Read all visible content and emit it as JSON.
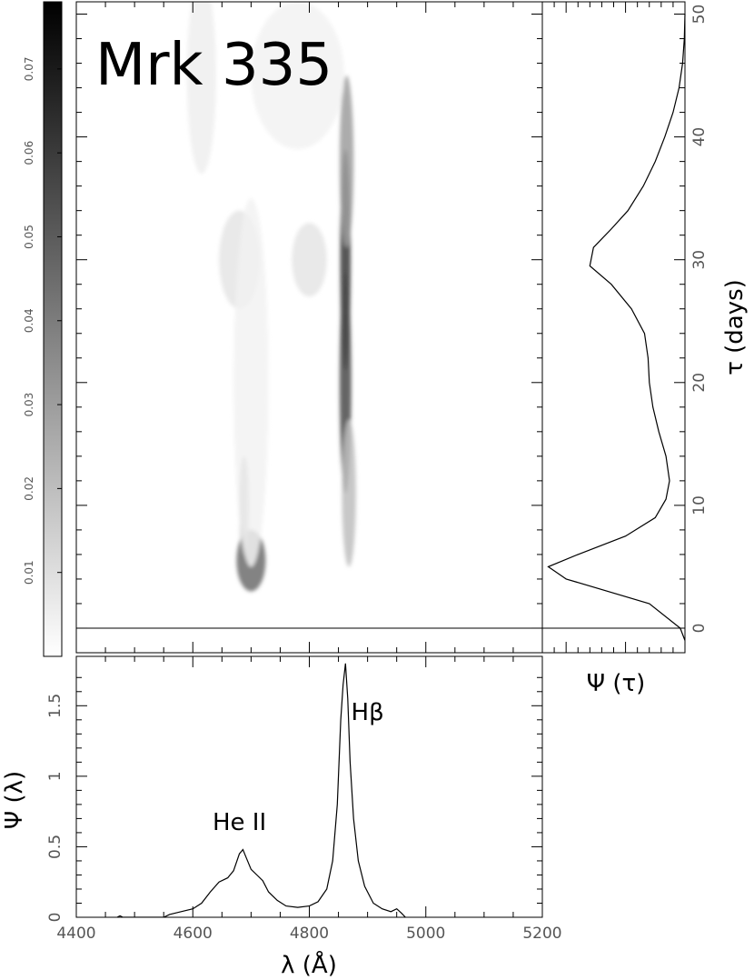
{
  "title": "Mrk 335",
  "chart_data": [
    {
      "type": "heatmap",
      "name": "velocity-delay map",
      "x_range": [
        4400,
        5200
      ],
      "y_range": [
        -2,
        51
      ],
      "colorbar": {
        "range": [
          0,
          0.078
        ],
        "ticks": [
          "0.01",
          "0.02",
          "0.03",
          "0.04",
          "0.05",
          "0.06",
          "0.07"
        ],
        "tick_values": [
          0.01,
          0.02,
          0.03,
          0.04,
          0.05,
          0.06,
          0.07
        ],
        "colors": [
          "#ffffff",
          "#000000"
        ]
      },
      "blobs": [
        {
          "x": 4862,
          "y": 30,
          "sx": 9,
          "sy": 9,
          "v": 0.06
        },
        {
          "x": 4862,
          "y": 20,
          "sx": 10,
          "sy": 9,
          "v": 0.055
        },
        {
          "x": 4864,
          "y": 38,
          "sx": 12,
          "sy": 7,
          "v": 0.03
        },
        {
          "x": 4868,
          "y": 11,
          "sx": 12,
          "sy": 6,
          "v": 0.02
        },
        {
          "x": 4700,
          "y": 5.5,
          "sx": 25,
          "sy": 2.5,
          "v": 0.045
        },
        {
          "x": 4688,
          "y": 10,
          "sx": 8,
          "sy": 4,
          "v": 0.03
        },
        {
          "x": 4680,
          "y": 30,
          "sx": 35,
          "sy": 4,
          "v": 0.008
        },
        {
          "x": 4800,
          "y": 30,
          "sx": 30,
          "sy": 3,
          "v": 0.008
        },
        {
          "x": 4780,
          "y": 45,
          "sx": 80,
          "sy": 6,
          "v": 0.004
        },
        {
          "x": 4700,
          "y": 20,
          "sx": 30,
          "sy": 15,
          "v": 0.004
        },
        {
          "x": 4615,
          "y": 45,
          "sx": 25,
          "sy": 8,
          "v": 0.005
        }
      ]
    },
    {
      "type": "line",
      "name": "delay-integrated response",
      "xlabel": "Ψ (τ)",
      "ylabel": "τ (days)",
      "y_ticks": [
        0,
        10,
        20,
        30,
        40,
        50
      ],
      "ylim": [
        -2,
        51
      ],
      "xlim": [
        0,
        0.12
      ],
      "points": [
        [
          0.0,
          -1
        ],
        [
          0.004,
          0
        ],
        [
          0.03,
          2
        ],
        [
          0.1,
          4
        ],
        [
          0.115,
          5
        ],
        [
          0.09,
          6
        ],
        [
          0.05,
          7.5
        ],
        [
          0.025,
          9
        ],
        [
          0.016,
          10.5
        ],
        [
          0.013,
          12
        ],
        [
          0.016,
          14
        ],
        [
          0.022,
          16
        ],
        [
          0.027,
          18
        ],
        [
          0.03,
          20
        ],
        [
          0.031,
          22
        ],
        [
          0.034,
          24
        ],
        [
          0.045,
          26
        ],
        [
          0.062,
          28
        ],
        [
          0.08,
          29.5
        ],
        [
          0.077,
          31
        ],
        [
          0.062,
          32.5
        ],
        [
          0.048,
          34
        ],
        [
          0.035,
          36
        ],
        [
          0.025,
          38
        ],
        [
          0.017,
          40
        ],
        [
          0.01,
          42
        ],
        [
          0.005,
          44
        ],
        [
          0.002,
          46
        ],
        [
          0.0005,
          48
        ],
        [
          0.0,
          50
        ]
      ]
    },
    {
      "type": "line",
      "name": "mean spectrum",
      "xlabel": "λ (Å)",
      "ylabel": "Ψ (λ)",
      "x_ticks": [
        4400,
        4600,
        4800,
        5000,
        5200
      ],
      "y_ticks": [
        0,
        0.5,
        1,
        1.5
      ],
      "y_tick_labels": [
        "0",
        "0.5",
        "1",
        "1.5"
      ],
      "xlim": [
        4400,
        5200
      ],
      "ylim": [
        0,
        1.85
      ],
      "annotations": [
        {
          "text": "He II",
          "x": 4680,
          "y": 0.62
        },
        {
          "text": "Hβ",
          "x": 4900,
          "y": 1.4
        }
      ],
      "points": [
        [
          4470,
          0.0
        ],
        [
          4475,
          0.01
        ],
        [
          4480,
          0.0
        ],
        [
          4550,
          0.0
        ],
        [
          4560,
          0.02
        ],
        [
          4580,
          0.04
        ],
        [
          4600,
          0.06
        ],
        [
          4615,
          0.1
        ],
        [
          4630,
          0.18
        ],
        [
          4645,
          0.25
        ],
        [
          4660,
          0.28
        ],
        [
          4670,
          0.33
        ],
        [
          4680,
          0.45
        ],
        [
          4686,
          0.48
        ],
        [
          4692,
          0.42
        ],
        [
          4700,
          0.34
        ],
        [
          4710,
          0.3
        ],
        [
          4720,
          0.26
        ],
        [
          4730,
          0.18
        ],
        [
          4745,
          0.12
        ],
        [
          4760,
          0.08
        ],
        [
          4780,
          0.07
        ],
        [
          4800,
          0.08
        ],
        [
          4815,
          0.11
        ],
        [
          4830,
          0.2
        ],
        [
          4840,
          0.4
        ],
        [
          4848,
          0.8
        ],
        [
          4854,
          1.4
        ],
        [
          4858,
          1.65
        ],
        [
          4862,
          1.8
        ],
        [
          4866,
          1.55
        ],
        [
          4870,
          1.1
        ],
        [
          4876,
          0.7
        ],
        [
          4884,
          0.4
        ],
        [
          4895,
          0.22
        ],
        [
          4910,
          0.1
        ],
        [
          4925,
          0.06
        ],
        [
          4940,
          0.04
        ],
        [
          4950,
          0.06
        ],
        [
          4958,
          0.03
        ],
        [
          4965,
          0.0
        ]
      ]
    }
  ]
}
